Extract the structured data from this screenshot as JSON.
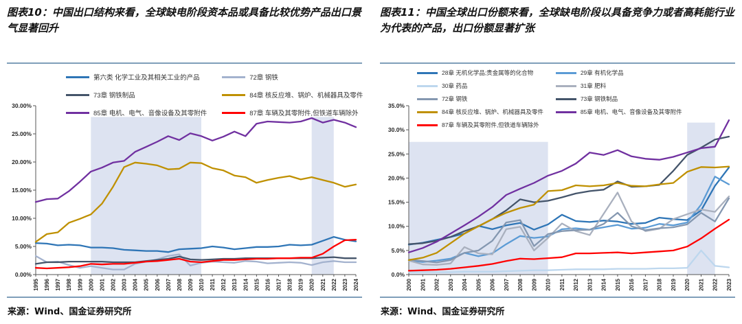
{
  "page": {
    "background": "#ffffff",
    "rule_color": "#7E9EB9"
  },
  "figures": [
    {
      "title": "图表10：中国出口结构来看，全球缺电阶段资本品或具备比较优势产品出口景气显著回升",
      "source": "来源：Wind、国金证券研究所",
      "chart_data": {
        "type": "line",
        "x": [
          1995,
          1996,
          1997,
          1998,
          1999,
          2000,
          2001,
          2002,
          2003,
          2004,
          2005,
          2006,
          2007,
          2008,
          2009,
          2010,
          2011,
          2012,
          2013,
          2014,
          2015,
          2016,
          2017,
          2018,
          2019,
          2020,
          2021,
          2022,
          2023,
          2024
        ],
        "ylim": [
          0,
          30
        ],
        "ytick_step": 5,
        "ytick_labels": [
          "0.00%",
          "5.00%",
          "10.00%",
          "15.00%",
          "20.00%",
          "25.00%",
          "30.00%"
        ],
        "grid": false,
        "legend_position": "top",
        "band_color": "#DDE3F1",
        "shaded_regions": [
          {
            "x0": 2000,
            "x1": 2010,
            "top": 28
          },
          {
            "x0": 2020,
            "x1": 2022,
            "top": 28
          }
        ],
        "series": [
          {
            "name": "第六类 化学工业及其相关工业的产品",
            "color": "#2E75B6",
            "values": [
              5.6,
              5.5,
              5.2,
              5.3,
              5.2,
              4.8,
              4.8,
              4.7,
              4.4,
              4.3,
              4.2,
              4.2,
              4.0,
              4.5,
              4.6,
              4.7,
              5.0,
              4.8,
              4.5,
              4.7,
              4.9,
              4.9,
              5.0,
              5.3,
              5.2,
              5.3,
              6.0,
              6.7,
              6.2,
              5.9
            ]
          },
          {
            "name": "72章 钢铁",
            "color": "#A3B2CE",
            "values": [
              3.3,
              2.2,
              2.3,
              1.7,
              1.2,
              1.5,
              1.2,
              0.9,
              0.9,
              1.9,
              2.3,
              2.7,
              3.3,
              3.6,
              1.6,
              2.1,
              2.3,
              2.2,
              2.1,
              2.4,
              2.3,
              2.0,
              2.1,
              2.2,
              2.1,
              1.7,
              2.2,
              2.4,
              2.2,
              2.2
            ]
          },
          {
            "name": "73章 钢铁制品",
            "color": "#44546A",
            "values": [
              1.9,
              2.2,
              2.2,
              2.3,
              2.3,
              2.3,
              2.3,
              2.2,
              2.2,
              2.2,
              2.4,
              2.6,
              2.8,
              3.2,
              2.7,
              2.6,
              2.7,
              2.8,
              2.8,
              2.9,
              2.9,
              2.9,
              2.9,
              2.9,
              2.9,
              2.9,
              3.0,
              3.1,
              2.9,
              2.9
            ]
          },
          {
            "name": "84章 核反应堆、锅炉、机械器具及零件",
            "color": "#BF9000",
            "values": [
              5.8,
              7.2,
              7.5,
              9.2,
              9.9,
              10.7,
              12.6,
              15.6,
              19.1,
              19.9,
              19.7,
              19.4,
              18.7,
              18.8,
              19.9,
              19.8,
              18.9,
              18.5,
              17.6,
              17.3,
              16.3,
              16.8,
              17.2,
              17.5,
              16.9,
              17.3,
              16.8,
              16.3,
              15.6,
              16.0
            ]
          },
          {
            "name": "85章 电机、电气、音像设备及其零附件",
            "color": "#7030A0",
            "values": [
              12.9,
              13.4,
              13.5,
              14.8,
              16.5,
              18.3,
              19.0,
              19.9,
              20.2,
              21.8,
              22.7,
              23.6,
              24.6,
              23.9,
              25.1,
              24.6,
              23.8,
              24.5,
              25.4,
              24.6,
              26.8,
              27.2,
              27.1,
              27.0,
              27.2,
              27.8,
              27.0,
              27.5,
              27.0,
              26.2
            ]
          },
          {
            "name": "87章 车辆及其零附件,但铁道车辆除外",
            "color": "#FF0000",
            "values": [
              1.2,
              1.1,
              1.2,
              1.3,
              1.5,
              1.9,
              1.8,
              1.9,
              1.9,
              2.1,
              2.3,
              2.4,
              2.6,
              2.8,
              2.3,
              2.2,
              2.4,
              2.6,
              2.6,
              2.7,
              2.8,
              2.8,
              2.9,
              2.9,
              3.0,
              3.0,
              3.7,
              5.0,
              6.1,
              6.2
            ]
          }
        ]
      }
    },
    {
      "title": "图表11：中国全球出口份额来看，全球缺电阶段以具备竞争力或者高耗能行业为代表的产品，出口份额显著扩张",
      "source": "来源：Wind、国金证券研究所",
      "chart_data": {
        "type": "line",
        "x": [
          2000,
          2001,
          2002,
          2003,
          2004,
          2005,
          2006,
          2007,
          2008,
          2009,
          2010,
          2011,
          2012,
          2013,
          2014,
          2015,
          2016,
          2017,
          2018,
          2019,
          2020,
          2021,
          2022,
          2023
        ],
        "ylim": [
          0,
          35
        ],
        "ytick_step": 5,
        "ytick_labels": [
          "0.0%",
          "5.0%",
          "10.0%",
          "15.0%",
          "20.0%",
          "25.0%",
          "30.0%",
          "35.0%"
        ],
        "grid": false,
        "legend_position": "top",
        "band_color": "#DDE3F1",
        "shaded_regions": [
          {
            "x0": 2000,
            "x1": 2010,
            "top": 27.5
          },
          {
            "x0": 2020,
            "x1": 2022,
            "top": 31.5
          }
        ],
        "series": [
          {
            "name": "28章 无机化学品;贵金属等的化合物",
            "color": "#2E75B6",
            "values": [
              6.2,
              6.6,
              7.2,
              7.8,
              8.5,
              10.1,
              9.4,
              10.2,
              10.7,
              9.3,
              10.4,
              12.4,
              11.1,
              10.9,
              11.2,
              11.0,
              10.5,
              10.7,
              11.8,
              11.5,
              11.3,
              13.3,
              18.4,
              22.2
            ]
          },
          {
            "name": "29章 有机化学品",
            "color": "#5B9BD5",
            "values": [
              2.9,
              2.6,
              2.9,
              3.3,
              4.5,
              3.8,
              4.4,
              6.3,
              8.0,
              7.6,
              7.9,
              9.4,
              9.6,
              9.3,
              9.8,
              10.3,
              9.5,
              9.7,
              10.5,
              10.2,
              10.8,
              14.5,
              20.3,
              18.7
            ]
          },
          {
            "name": "30章 药品",
            "color": "#BDD7EE",
            "values": [
              0.5,
              0.5,
              0.5,
              0.5,
              0.6,
              0.6,
              0.6,
              0.7,
              0.8,
              0.9,
              0.9,
              1.0,
              1.1,
              1.1,
              1.1,
              1.2,
              1.2,
              1.2,
              1.3,
              1.3,
              1.4,
              5.0,
              1.8,
              1.5
            ]
          },
          {
            "name": "31章 肥料",
            "color": "#A9B0BE",
            "values": [
              2.9,
              2.1,
              2.0,
              2.3,
              5.7,
              4.4,
              4.2,
              9.4,
              9.9,
              5.0,
              7.6,
              10.6,
              9.0,
              8.2,
              12.6,
              17.0,
              11.0,
              9.0,
              9.5,
              11.5,
              12.5,
              13.5,
              13.0,
              16.2
            ]
          },
          {
            "name": "72章 钢铁",
            "color": "#8497B0",
            "values": [
              3.1,
              2.8,
              2.5,
              3.0,
              4.5,
              5.0,
              7.0,
              10.8,
              11.3,
              5.9,
              8.4,
              9.0,
              9.2,
              9.3,
              10.5,
              12.8,
              10.0,
              9.2,
              9.6,
              9.8,
              10.4,
              12.8,
              11.0,
              15.8
            ]
          },
          {
            "name": "73章 钢铁制品",
            "color": "#44546A",
            "values": [
              6.3,
              6.5,
              7.0,
              7.8,
              9.0,
              10.0,
              11.5,
              13.3,
              15.6,
              15.0,
              15.3,
              16.0,
              16.8,
              17.3,
              17.6,
              19.3,
              18.2,
              18.3,
              18.6,
              21.5,
              24.8,
              26.3,
              28.0,
              28.6
            ]
          },
          {
            "name": "84章 核反应堆、锅炉、机械器具及零件",
            "color": "#BF9000",
            "values": [
              3.0,
              3.5,
              4.5,
              6.5,
              8.5,
              10.0,
              11.5,
              12.8,
              13.8,
              14.5,
              17.3,
              17.5,
              18.5,
              18.3,
              18.5,
              19.0,
              18.4,
              18.3,
              18.7,
              19.0,
              21.3,
              22.3,
              22.2,
              22.4
            ]
          },
          {
            "name": "85章 电机、电气、音像设备及其零附件",
            "color": "#7030A0",
            "values": [
              4.6,
              5.5,
              6.8,
              8.5,
              10.2,
              12.0,
              14.0,
              16.5,
              17.8,
              19.0,
              20.5,
              21.5,
              23.0,
              25.3,
              24.8,
              25.8,
              24.5,
              24.0,
              23.8,
              24.4,
              25.3,
              26.2,
              26.5,
              32.0
            ]
          },
          {
            "name": "87章 车辆及其零附件,但铁道车辆除外",
            "color": "#FF0000",
            "values": [
              0.8,
              0.9,
              1.0,
              1.2,
              1.5,
              1.8,
              2.2,
              2.8,
              3.3,
              3.2,
              3.4,
              3.6,
              4.4,
              4.4,
              4.5,
              4.6,
              4.4,
              4.6,
              4.8,
              5.0,
              5.8,
              7.5,
              9.5,
              11.4
            ]
          }
        ]
      }
    }
  ]
}
